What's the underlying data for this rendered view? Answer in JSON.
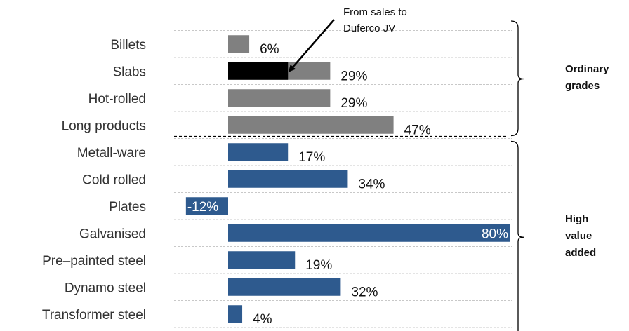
{
  "chart_data": {
    "type": "bar",
    "orientation": "horizontal",
    "categories": [
      "Billets",
      "Slabs",
      "Hot-rolled",
      "Long products",
      "Metall-ware",
      "Cold rolled",
      "Plates",
      "Galvanised",
      "Pre–painted steel",
      "Dynamo steel",
      "Transformer steel"
    ],
    "values": [
      6,
      29,
      29,
      47,
      17,
      34,
      -12,
      80,
      19,
      32,
      4
    ],
    "value_labels": [
      "6%",
      "29%",
      "29%",
      "47%",
      "17%",
      "34%",
      "-12%",
      "80%",
      "19%",
      "32%",
      "4%"
    ],
    "slabs_duferco_portion": 17,
    "groups": [
      {
        "label_lines": [
          "Ordinary",
          "grades"
        ],
        "start": 0,
        "end": 3,
        "color": "#808080"
      },
      {
        "label_lines": [
          "High",
          "value",
          "added"
        ],
        "start": 4,
        "end": 10,
        "color": "#2e5a8e"
      }
    ],
    "highlight_color": "#000000",
    "annotation": {
      "lines": [
        "From sales to",
        "Duferco JV"
      ],
      "target": "Slabs"
    },
    "xlim": [
      -12,
      80
    ],
    "grid": "dashed horizontal separators",
    "title": "",
    "xlabel": "",
    "ylabel": ""
  }
}
